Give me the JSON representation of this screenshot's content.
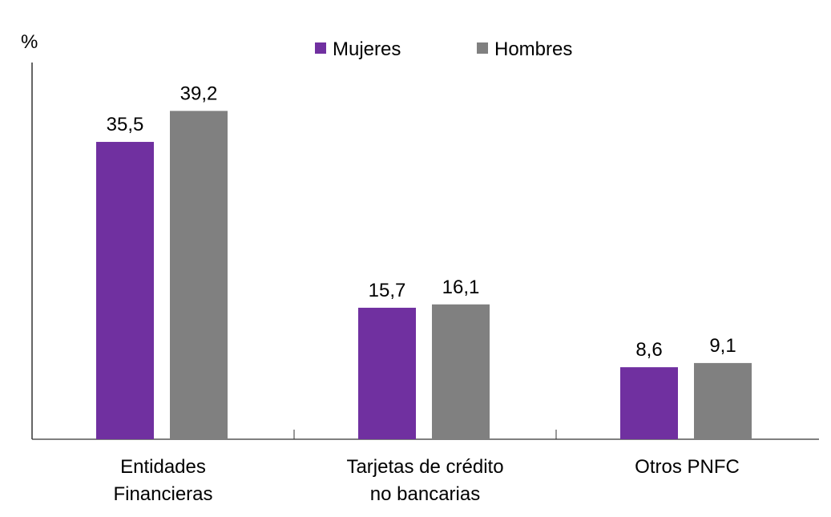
{
  "chart_data": {
    "type": "bar",
    "ylabel": "%",
    "categories": [
      [
        "Entidades",
        "Financieras"
      ],
      [
        "Tarjetas de crédito",
        "no bancarias"
      ],
      [
        "Otros PNFC"
      ]
    ],
    "series": [
      {
        "name": "Mujeres",
        "color": "#7030A0",
        "values": [
          35.5,
          15.7,
          8.6
        ],
        "labels": [
          "35,5",
          "15,7",
          "8,6"
        ]
      },
      {
        "name": "Hombres",
        "color": "#808080",
        "values": [
          39.2,
          16.1,
          9.1
        ],
        "labels": [
          "39,2",
          "16,1",
          "9,1"
        ]
      }
    ],
    "ylim": [
      0,
      43
    ],
    "grid": false,
    "legend": "top-center"
  }
}
